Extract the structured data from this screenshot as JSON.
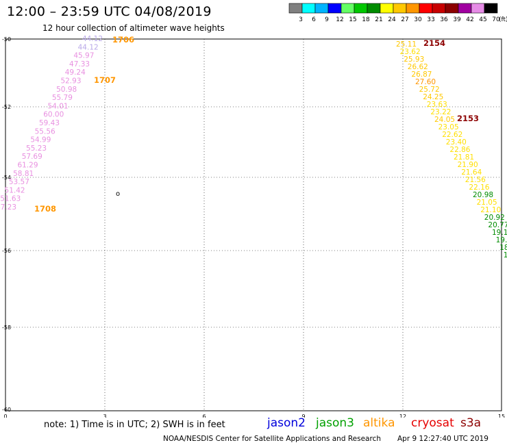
{
  "header": {
    "title": "12:00 – 23:59 UTC 04/08/2019",
    "subtitle": "12 hour collection of altimeter wave heights"
  },
  "legend": {
    "unit": "(ft)",
    "bins": [
      {
        "label": "3",
        "color": "#808080"
      },
      {
        "label": "6",
        "color": "#00ffff"
      },
      {
        "label": "9",
        "color": "#00b4ff"
      },
      {
        "label": "12",
        "color": "#0000ff"
      },
      {
        "label": "15",
        "color": "#64ff64"
      },
      {
        "label": "18",
        "color": "#00c800"
      },
      {
        "label": "21",
        "color": "#008c00"
      },
      {
        "label": "24",
        "color": "#ffff00"
      },
      {
        "label": "27",
        "color": "#ffc800"
      },
      {
        "label": "30",
        "color": "#ff9600"
      },
      {
        "label": "33",
        "color": "#ff0000"
      },
      {
        "label": "36",
        "color": "#c80000"
      },
      {
        "label": "39",
        "color": "#8c0000"
      },
      {
        "label": "42",
        "color": "#a000a0"
      },
      {
        "label": "45",
        "color": "#e68ce6"
      },
      {
        "label": "70",
        "color": "#000000"
      }
    ]
  },
  "map": {
    "lat_labels": [
      "-50",
      "-52",
      "-54",
      "-56",
      "-58",
      "-60"
    ],
    "lon_labels": [
      "0",
      "3",
      "6",
      "9",
      "12",
      "15"
    ],
    "island_label": "o"
  },
  "tracks": {
    "left": {
      "heights": [
        "44.12",
        "44.12",
        "45.97",
        "47.33",
        "49.24",
        "52.93",
        "50.98",
        "55.79",
        "54.01",
        "60.00",
        "59.43",
        "55.56",
        "54.99",
        "55.23",
        "57.69",
        "61.29",
        "58.81",
        "53.57",
        "51.42",
        "51.63",
        "47.23"
      ],
      "times": [
        "1706",
        "1707",
        "1708"
      ]
    },
    "right": {
      "heights": [
        "25.11",
        "23.62",
        "25.93",
        "26.62",
        "26.87",
        "27.60",
        "25.72",
        "24.25",
        "23.63",
        "23.22",
        "24.05",
        "23.05",
        "22.62",
        "23.40",
        "22.86",
        "21.81",
        "21.90",
        "21.64",
        "21.56",
        "22.16",
        "20.98",
        "21.05",
        "21.10",
        "20.92",
        "20.77",
        "19.11",
        "19.9",
        "18.",
        "19"
      ],
      "times": [
        "2154",
        "2153"
      ]
    }
  },
  "footer": {
    "note": "note:  1) Time is in UTC;  2) SWH is in feet",
    "satellites": [
      {
        "name": "jason2",
        "color": "#0000dc"
      },
      {
        "name": "jason3",
        "color": "#00a000"
      },
      {
        "name": "altika",
        "color": "#ff9600"
      },
      {
        "name": "cryosat",
        "color": "#e60000"
      },
      {
        "name": "s3a",
        "color": "#8c0000"
      }
    ],
    "credit": "NOAA/NESDIS Center for Satellite Applications and Research",
    "generated": "Apr  9 12:27:40 UTC 2019"
  }
}
